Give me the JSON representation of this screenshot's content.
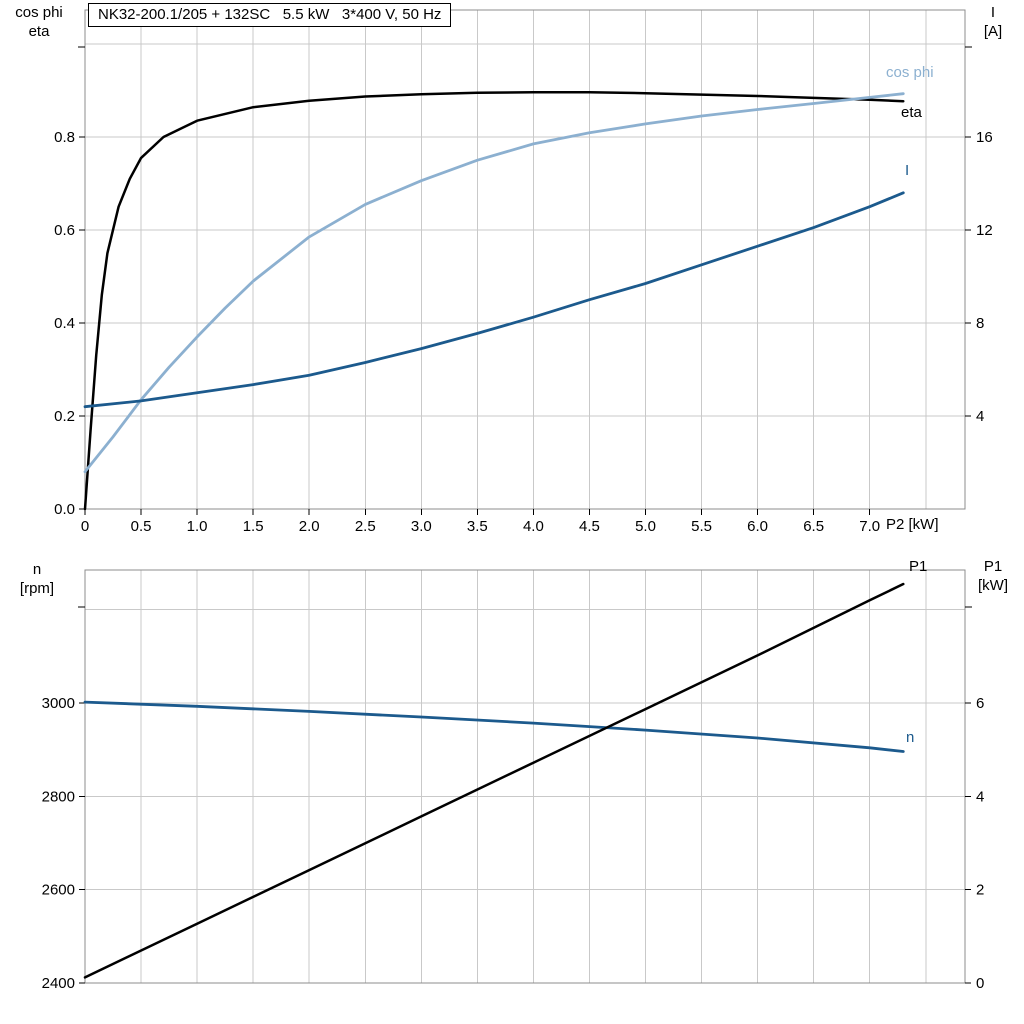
{
  "title_box": "NK32-200.1/205 + 132SC   5.5 kW   3*400 V, 50 Hz",
  "colors": {
    "black": "#000000",
    "light_blue": "#8CB0D0",
    "dark_blue": "#1C5A8D",
    "grid": "#C9C9C9",
    "border": "#8C8C8C",
    "tick": "#000000",
    "background": "#FFFFFF"
  },
  "labels": {
    "top_yl1": "cos phi",
    "top_yl2": "eta",
    "top_yr1": "I",
    "top_yr2": "[A]",
    "x_axis": "P2 [kW]",
    "bot_yl1": "n",
    "bot_yl2": "[rpm]",
    "bot_yr1": "P1",
    "bot_yr2": "[kW]"
  },
  "chart_data": [
    {
      "type": "line",
      "title": "NK32-200.1/205 + 132SC   5.5 kW   3*400 V, 50 Hz",
      "x_axis": {
        "label": "P2 [kW]",
        "min": 0,
        "max": 7.85,
        "grid_step": 0.5,
        "ticks": [
          0,
          0.5,
          1.0,
          1.5,
          2.0,
          2.5,
          3.0,
          3.5,
          4.0,
          4.5,
          5.0,
          5.5,
          6.0,
          6.5,
          7.0
        ],
        "tick_labels": [
          "0",
          "0.5",
          "1.0",
          "1.5",
          "2.0",
          "2.5",
          "3.0",
          "3.5",
          "4.0",
          "4.5",
          "5.0",
          "5.5",
          "6.0",
          "6.5",
          "7.0"
        ]
      },
      "y_left": {
        "label": "cos phi / eta",
        "min": 0,
        "max": 1.073,
        "ticks": [
          0.0,
          0.2,
          0.4,
          0.6,
          0.8
        ],
        "tick_labels": [
          "0.0",
          "0.2",
          "0.4",
          "0.6",
          "0.8"
        ],
        "grid_ticks": [
          0.2,
          0.4,
          0.6,
          0.8,
          1.0
        ]
      },
      "y_right": {
        "label": "I [A]",
        "min": 0,
        "max": 21.46,
        "ticks": [
          4,
          8,
          12,
          16
        ],
        "tick_labels": [
          "4",
          "8",
          "12",
          "16"
        ]
      },
      "series": [
        {
          "name": "eta",
          "axis": "left",
          "color": "#000000",
          "width": 2.5,
          "x": [
            0,
            0.05,
            0.1,
            0.15,
            0.2,
            0.3,
            0.4,
            0.5,
            0.7,
            1.0,
            1.5,
            2.0,
            2.5,
            3.0,
            3.5,
            4.0,
            4.5,
            5.0,
            5.5,
            6.0,
            6.5,
            7.0,
            7.3
          ],
          "y": [
            0,
            0.17,
            0.33,
            0.46,
            0.55,
            0.65,
            0.71,
            0.755,
            0.8,
            0.835,
            0.864,
            0.878,
            0.887,
            0.892,
            0.895,
            0.896,
            0.896,
            0.894,
            0.891,
            0.888,
            0.884,
            0.88,
            0.877
          ]
        },
        {
          "name": "cos phi",
          "axis": "left",
          "color": "#8CB0D0",
          "width": 2.8,
          "x": [
            0,
            0.25,
            0.5,
            0.75,
            1.0,
            1.25,
            1.5,
            2.0,
            2.5,
            3.0,
            3.5,
            4.0,
            4.5,
            5.0,
            5.5,
            6.0,
            6.5,
            7.0,
            7.3
          ],
          "y": [
            0.08,
            0.155,
            0.235,
            0.305,
            0.37,
            0.432,
            0.49,
            0.585,
            0.655,
            0.706,
            0.75,
            0.785,
            0.809,
            0.828,
            0.845,
            0.859,
            0.872,
            0.885,
            0.893
          ]
        },
        {
          "name": "I",
          "axis": "right",
          "color": "#1C5A8D",
          "width": 2.8,
          "x": [
            0,
            0.5,
            1.0,
            1.5,
            2.0,
            2.5,
            3.0,
            3.5,
            4.0,
            4.5,
            5.0,
            5.5,
            6.0,
            6.5,
            7.0,
            7.3
          ],
          "y": [
            4.4,
            4.65,
            5.0,
            5.35,
            5.75,
            6.3,
            6.9,
            7.55,
            8.25,
            9.0,
            9.7,
            10.5,
            11.3,
            12.1,
            13.0,
            13.6
          ]
        }
      ]
    },
    {
      "type": "line",
      "title": "",
      "x_axis": {
        "label": "",
        "min": 0,
        "max": 7.85,
        "grid_step": 0.5,
        "ticks": [],
        "tick_labels": null
      },
      "y_left": {
        "label": "n [rpm]",
        "min": 2400,
        "max": 3285,
        "ticks": [
          2400,
          2600,
          2800,
          3000
        ],
        "tick_labels": [
          "2400",
          "2600",
          "2800",
          "3000"
        ],
        "grid_ticks": [
          2600,
          2800,
          3000,
          3200
        ]
      },
      "y_right": {
        "label": "P1 [kW]",
        "min": 0,
        "max": 8.85,
        "ticks": [
          0,
          2,
          4,
          6
        ],
        "tick_labels": [
          "0",
          "2",
          "4",
          "6"
        ]
      },
      "series": [
        {
          "name": "n",
          "axis": "left",
          "color": "#1C5A8D",
          "width": 2.8,
          "x": [
            0,
            1,
            2,
            3,
            4,
            5,
            6,
            7,
            7.3
          ],
          "y": [
            3002,
            2993,
            2982,
            2970,
            2957,
            2942,
            2925,
            2904,
            2896
          ]
        },
        {
          "name": "P1",
          "axis": "right",
          "color": "#000000",
          "width": 2.5,
          "x": [
            0,
            1,
            2,
            3,
            4,
            5,
            6,
            7,
            7.3
          ],
          "y": [
            0.12,
            1.27,
            2.42,
            3.57,
            4.72,
            5.87,
            7.02,
            8.2,
            8.55
          ]
        }
      ]
    }
  ]
}
